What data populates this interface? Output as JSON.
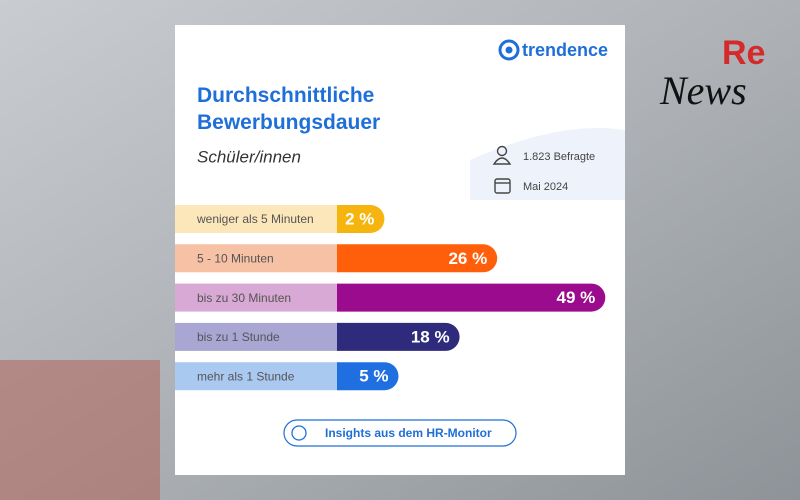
{
  "brand": "trendence",
  "watermark": {
    "top": "Re",
    "bottom": "News"
  },
  "subtitle": "Schüler/innen",
  "respondents": "1.823 Befragte",
  "date": "Mai 2024",
  "footer_button": "Insights aus dem HR-Monitor",
  "chart_data": {
    "type": "hbar",
    "title": "Durchschnittliche Bewerbungsdauer",
    "categories": [
      "weniger als 5 Minuten",
      "5 - 10 Minuten",
      "bis zu 30 Minuten",
      "bis zu 1 Stunde",
      "mehr als 1 Stunde"
    ],
    "values": [
      2,
      26,
      49,
      18,
      5
    ],
    "value_labels": [
      "2 %",
      "26 %",
      "49 %",
      "18 %",
      "5 %"
    ],
    "colors": [
      "#f6b40e",
      "#ff5f0a",
      "#9b0b8d",
      "#2e2a7c",
      "#1f6fe0"
    ],
    "label_colors": [
      "#fbe7b9",
      "#f6c1a5",
      "#d8a9d4",
      "#a9a6d4",
      "#a9c9f1"
    ]
  }
}
